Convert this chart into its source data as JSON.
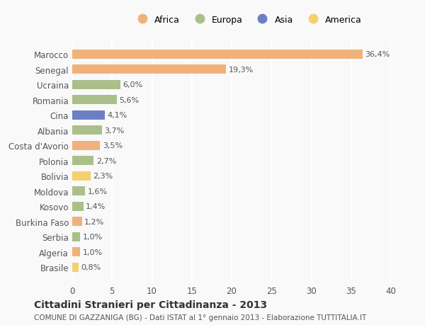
{
  "categories": [
    "Marocco",
    "Senegal",
    "Ucraina",
    "Romania",
    "Cina",
    "Albania",
    "Costa d'Avorio",
    "Polonia",
    "Bolivia",
    "Moldova",
    "Kosovo",
    "Burkina Faso",
    "Serbia",
    "Algeria",
    "Brasile"
  ],
  "values": [
    36.4,
    19.3,
    6.0,
    5.6,
    4.1,
    3.7,
    3.5,
    2.7,
    2.3,
    1.6,
    1.4,
    1.2,
    1.0,
    1.0,
    0.8
  ],
  "labels": [
    "36,4%",
    "19,3%",
    "6,0%",
    "5,6%",
    "4,1%",
    "3,7%",
    "3,5%",
    "2,7%",
    "2,3%",
    "1,6%",
    "1,4%",
    "1,2%",
    "1,0%",
    "1,0%",
    "0,8%"
  ],
  "bar_colors": [
    "#F0B27A",
    "#F0B27A",
    "#ABBF8A",
    "#ABBF8A",
    "#6B7FC4",
    "#ABBF8A",
    "#F0B27A",
    "#ABBF8A",
    "#F5D06E",
    "#ABBF8A",
    "#ABBF8A",
    "#F0B27A",
    "#ABBF8A",
    "#F0B27A",
    "#F5D06E"
  ],
  "continent_labels": [
    "Africa",
    "Europa",
    "Asia",
    "America"
  ],
  "continent_colors": [
    "#F0B27A",
    "#ABBF8A",
    "#6B7FC4",
    "#F5D06E"
  ],
  "title": "Cittadini Stranieri per Cittadinanza - 2013",
  "subtitle": "COMUNE DI GAZZANIGA (BG) - Dati ISTAT al 1° gennaio 2013 - Elaborazione TUTTITALIA.IT",
  "xlim": [
    0,
    40
  ],
  "xticks": [
    0,
    5,
    10,
    15,
    20,
    25,
    30,
    35,
    40
  ],
  "background_color": "#F9F9F9",
  "grid_color": "#FFFFFF",
  "label_color": "#555555"
}
